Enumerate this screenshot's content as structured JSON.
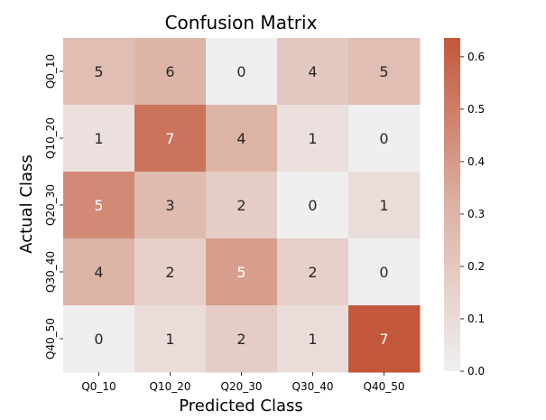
{
  "chart_data": {
    "type": "heatmap",
    "title": "Confusion Matrix",
    "xlabel": "Predicted Class",
    "ylabel": "Actual Class",
    "x_categories": [
      "Q0_10",
      "Q10_20",
      "Q20_30",
      "Q30_40",
      "Q40_50"
    ],
    "y_categories": [
      "Q0_10",
      "Q10_20",
      "Q20_30",
      "Q30_40",
      "Q40_50"
    ],
    "counts": [
      [
        5,
        6,
        0,
        4,
        5
      ],
      [
        1,
        7,
        4,
        1,
        0
      ],
      [
        5,
        3,
        2,
        0,
        1
      ],
      [
        4,
        2,
        5,
        2,
        0
      ],
      [
        0,
        1,
        2,
        1,
        7
      ]
    ],
    "normalized": [
      [
        0.25,
        0.3,
        0.0,
        0.2,
        0.25
      ],
      [
        0.077,
        0.538,
        0.308,
        0.077,
        0.0
      ],
      [
        0.455,
        0.273,
        0.182,
        0.0,
        0.091
      ],
      [
        0.308,
        0.154,
        0.385,
        0.154,
        0.0
      ],
      [
        0.0,
        0.091,
        0.182,
        0.091,
        0.636
      ]
    ],
    "colorbar": {
      "range": [
        0.0,
        0.636
      ],
      "ticks": [
        "0.0",
        "0.1",
        "0.2",
        "0.3",
        "0.4",
        "0.5",
        "0.6"
      ],
      "tick_values": [
        0.0,
        0.1,
        0.2,
        0.3,
        0.4,
        0.5,
        0.6
      ],
      "color_low": "#f0efef",
      "color_high": "#c3573b"
    },
    "grid": false
  }
}
